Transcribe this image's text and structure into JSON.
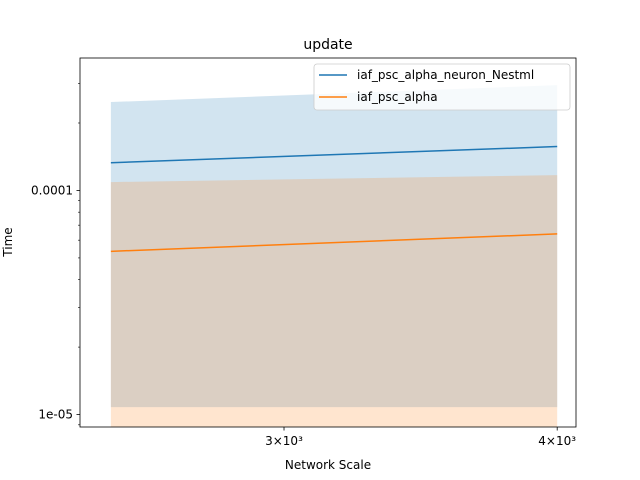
{
  "chart_data": {
    "type": "line",
    "title": "update",
    "xlabel": "Network Scale",
    "ylabel": "Time",
    "xscale": "log",
    "yscale": "log",
    "xlim": [
      2420,
      4080
    ],
    "ylim": [
      8.8e-06,
      0.00039
    ],
    "xticks": [
      {
        "value": 3000,
        "label": "3×10³"
      },
      {
        "value": 4000,
        "label": "4×10³"
      }
    ],
    "yticks": [
      {
        "value": 0.0001,
        "label": "0.0001"
      },
      {
        "value": 1e-05,
        "label": "1e-05"
      }
    ],
    "legend": {
      "placement": "upper right"
    },
    "series": [
      {
        "name": "iaf_psc_alpha_neuron_Nestml",
        "color": "#1f77b4",
        "band_color": "#1f77b4",
        "x": [
          2500,
          4000
        ],
        "y": [
          0.000133,
          0.000157
        ],
        "band_low": [
          1.08e-05,
          1.08e-05
        ],
        "band_high": [
          0.000248,
          0.000295
        ]
      },
      {
        "name": "iaf_psc_alpha",
        "color": "#ff7f0e",
        "band_color": "#ff7f0e",
        "x": [
          2500,
          4000
        ],
        "y": [
          5.35e-05,
          6.4e-05
        ],
        "band_low": [
          8.8e-06,
          8.8e-06
        ],
        "band_high": [
          0.000109,
          0.000117
        ]
      }
    ]
  }
}
